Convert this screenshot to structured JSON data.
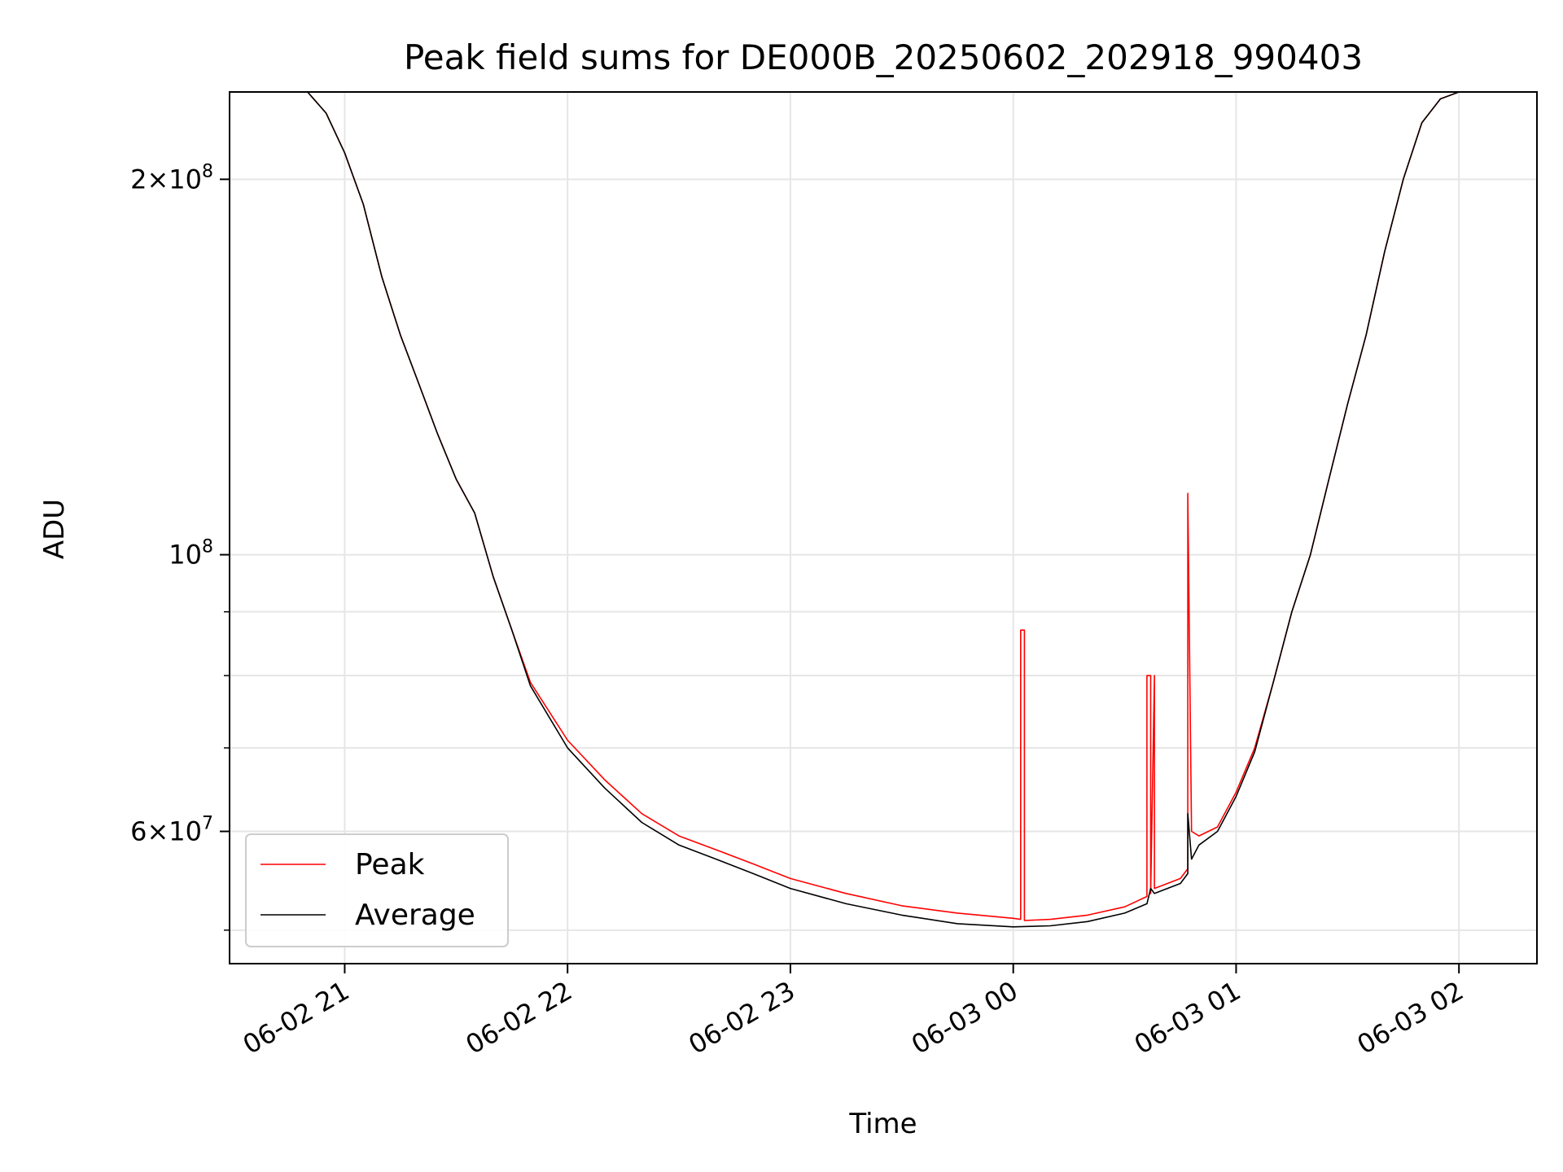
{
  "chart_data": {
    "type": "line",
    "title": "Peak field sums for DE000B_20250602_202918_990403",
    "xlabel": "Time",
    "ylabel": "ADU",
    "yscale": "log",
    "grid": true,
    "legend_position": "lower-left",
    "xlim": [
      "06-02 20:29",
      "06-03 02:21"
    ],
    "ylim": [
      47000000,
      235000000
    ],
    "x_ticks": [
      "06-02 21",
      "06-02 22",
      "06-02 23",
      "06-03 00",
      "06-03 01",
      "06-03 02"
    ],
    "y_ticks": [
      {
        "value": 200000000,
        "mantissa": "2",
        "times": "×",
        "base": "10",
        "exp": "8"
      },
      {
        "value": 100000000,
        "mantissa": "",
        "times": "",
        "base": "10",
        "exp": "8"
      },
      {
        "value": 60000000,
        "mantissa": "6",
        "times": "×",
        "base": "10",
        "exp": "7"
      }
    ],
    "y_minor_ticks": [
      50000000,
      70000000,
      80000000,
      90000000
    ],
    "series": [
      {
        "name": "Peak",
        "color": "#ff0000",
        "x": [
          "06-02 20:29",
          "06-02 20:50",
          "06-02 20:55",
          "06-02 21:00",
          "06-02 21:05",
          "06-02 21:10",
          "06-02 21:15",
          "06-02 21:20",
          "06-02 21:25",
          "06-02 21:30",
          "06-02 21:35",
          "06-02 21:40",
          "06-02 21:45",
          "06-02 21:50",
          "06-02 22:00",
          "06-02 22:10",
          "06-02 22:20",
          "06-02 22:30",
          "06-02 22:40",
          "06-02 22:50",
          "06-02 23:00",
          "06-02 23:15",
          "06-02 23:30",
          "06-02 23:45",
          "06-03 00:00",
          "06-03 00:02",
          "06-03 00:02",
          "06-03 00:03",
          "06-03 00:03",
          "06-03 00:10",
          "06-03 00:20",
          "06-03 00:30",
          "06-03 00:36",
          "06-03 00:36",
          "06-03 00:37",
          "06-03 00:37",
          "06-03 00:38",
          "06-03 00:38",
          "06-03 00:45",
          "06-03 00:47",
          "06-03 00:47",
          "06-03 00:48",
          "06-03 00:50",
          "06-03 00:55",
          "06-03 01:00",
          "06-03 01:05",
          "06-03 01:10",
          "06-03 01:15",
          "06-03 01:20",
          "06-03 01:25",
          "06-03 01:30",
          "06-03 01:35",
          "06-03 01:40",
          "06-03 01:45",
          "06-03 01:50",
          "06-03 01:55",
          "06-03 02:00",
          "06-03 02:21"
        ],
        "y": [
          235000000,
          235000000,
          226000000,
          210000000,
          191000000,
          167000000,
          150000000,
          137000000,
          125000000,
          115000000,
          108000000,
          96000000,
          87000000,
          79000000,
          71000000,
          66000000,
          62000000,
          59500000,
          58000000,
          56500000,
          55000000,
          53500000,
          52300000,
          51600000,
          51100000,
          51000000,
          87000000,
          87000000,
          50900000,
          51000000,
          51400000,
          52200000,
          53200000,
          80000000,
          80000000,
          53500000,
          80000000,
          54000000,
          55000000,
          56000000,
          112000000,
          60000000,
          59500000,
          60500000,
          64500000,
          70000000,
          79000000,
          90000000,
          100000000,
          115000000,
          132000000,
          150000000,
          175000000,
          200000000,
          222000000,
          232000000,
          235000000,
          235000000
        ]
      },
      {
        "name": "Average",
        "color": "#000000",
        "x": [
          "06-02 20:29",
          "06-02 20:50",
          "06-02 20:55",
          "06-02 21:00",
          "06-02 21:05",
          "06-02 21:10",
          "06-02 21:15",
          "06-02 21:20",
          "06-02 21:25",
          "06-02 21:30",
          "06-02 21:35",
          "06-02 21:40",
          "06-02 21:45",
          "06-02 21:50",
          "06-02 22:00",
          "06-02 22:10",
          "06-02 22:20",
          "06-02 22:30",
          "06-02 22:40",
          "06-02 22:50",
          "06-02 23:00",
          "06-02 23:15",
          "06-02 23:30",
          "06-02 23:45",
          "06-03 00:00",
          "06-03 00:10",
          "06-03 00:20",
          "06-03 00:30",
          "06-03 00:36",
          "06-03 00:37",
          "06-03 00:38",
          "06-03 00:45",
          "06-03 00:47",
          "06-03 00:47",
          "06-03 00:48",
          "06-03 00:50",
          "06-03 00:55",
          "06-03 01:00",
          "06-03 01:05",
          "06-03 01:10",
          "06-03 01:15",
          "06-03 01:20",
          "06-03 01:25",
          "06-03 01:30",
          "06-03 01:35",
          "06-03 01:40",
          "06-03 01:45",
          "06-03 01:50",
          "06-03 01:55",
          "06-03 02:00",
          "06-03 02:21"
        ],
        "y": [
          235000000,
          235000000,
          226000000,
          210000000,
          191000000,
          167000000,
          150000000,
          137000000,
          125000000,
          115000000,
          108000000,
          96000000,
          87000000,
          78500000,
          70000000,
          65000000,
          61000000,
          58500000,
          57000000,
          55500000,
          54000000,
          52500000,
          51400000,
          50600000,
          50300000,
          50400000,
          50800000,
          51600000,
          52500000,
          54000000,
          53500000,
          54500000,
          55500000,
          62000000,
          57000000,
          58500000,
          60000000,
          64000000,
          69500000,
          79000000,
          90000000,
          100000000,
          115000000,
          132000000,
          150000000,
          175000000,
          200000000,
          222000000,
          232000000,
          235000000,
          235000000
        ]
      }
    ]
  }
}
